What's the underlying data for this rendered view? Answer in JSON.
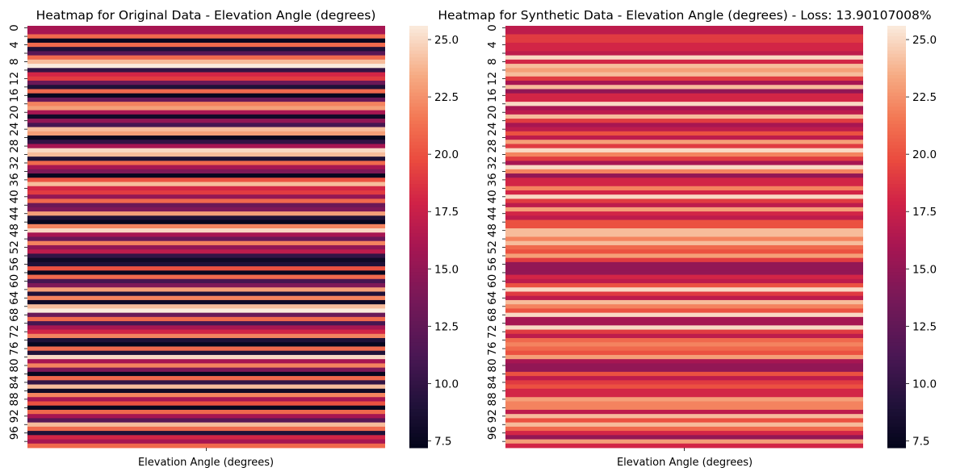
{
  "chart_data": [
    {
      "type": "heatmap",
      "title": "Heatmap for Original Data - Elevation Angle (degrees)",
      "xlabel": "Elevation Angle (degrees)",
      "ylabel": "",
      "row_tick_labels": [
        "0",
        "4",
        "8",
        "12",
        "16",
        "20",
        "24",
        "28",
        "32",
        "36",
        "40",
        "44",
        "48",
        "52",
        "56",
        "60",
        "64",
        "68",
        "72",
        "76",
        "80",
        "84",
        "88",
        "92",
        "96"
      ],
      "n_rows": 100,
      "colorbar": {
        "range": [
          7.2,
          25.6
        ],
        "ticks": [
          "7.5",
          "10.0",
          "12.5",
          "15.0",
          "17.5",
          "20.0",
          "22.5",
          "25.0"
        ],
        "colormap": "rocket"
      },
      "values": [
        16,
        16,
        21,
        7.5,
        21,
        9,
        12,
        21,
        24,
        26,
        10,
        18,
        19,
        13,
        9,
        21,
        7.5,
        13,
        22,
        23,
        16,
        8,
        15,
        11,
        24,
        23,
        7.5,
        10,
        16,
        25,
        24,
        9,
        21,
        16,
        14,
        7.5,
        20,
        24,
        18,
        19,
        15,
        21,
        13,
        14,
        23,
        9,
        7.5,
        22,
        25,
        16,
        13,
        22,
        15,
        17,
        10,
        8,
        9,
        20,
        7.5,
        21,
        11,
        14,
        23,
        9,
        22,
        8,
        24,
        26,
        13,
        21,
        11,
        16,
        18,
        22,
        9,
        7.5,
        21,
        9,
        25,
        16,
        22,
        14,
        7.5,
        21,
        10,
        24,
        8,
        22,
        16,
        20,
        7.5,
        21,
        16,
        12,
        24,
        21,
        9,
        18,
        16,
        21
      ]
    },
    {
      "type": "heatmap",
      "title": "Heatmap for Synthetic Data - Elevation Angle (degrees) - Loss: 13.90107008%",
      "xlabel": "Elevation Angle (degrees)",
      "ylabel": "",
      "row_tick_labels": [
        "0",
        "4",
        "8",
        "12",
        "16",
        "20",
        "24",
        "28",
        "32",
        "36",
        "40",
        "44",
        "48",
        "52",
        "56",
        "60",
        "64",
        "68",
        "72",
        "76",
        "80",
        "84",
        "88",
        "92",
        "96"
      ],
      "n_rows": 100,
      "colorbar": {
        "range": [
          7.2,
          25.6
        ],
        "ticks": [
          "7.5",
          "10.0",
          "12.5",
          "15.0",
          "17.5",
          "20.0",
          "22.5",
          "25.0"
        ],
        "colormap": "rocket"
      },
      "values": [
        17,
        17,
        19,
        19,
        18,
        18,
        17,
        25,
        18,
        24,
        23,
        24,
        19,
        16,
        24,
        15,
        18,
        18,
        25,
        16,
        17,
        24,
        19,
        16,
        17,
        20,
        17,
        23,
        19,
        25,
        22,
        19,
        16,
        25,
        22,
        15,
        18,
        18,
        22,
        18,
        25,
        19,
        17,
        23,
        18,
        17,
        20,
        20,
        24,
        24,
        22,
        24,
        21,
        20,
        23,
        19,
        15,
        15,
        15,
        18,
        17,
        20,
        25,
        19,
        17,
        24,
        22,
        20,
        25,
        16,
        16,
        25,
        19,
        17,
        21,
        22,
        21,
        20,
        23,
        16,
        15,
        15,
        20,
        17,
        19,
        20,
        18,
        18,
        23,
        22,
        22,
        17,
        24,
        20,
        24,
        21,
        18,
        15,
        23,
        18
      ]
    }
  ]
}
